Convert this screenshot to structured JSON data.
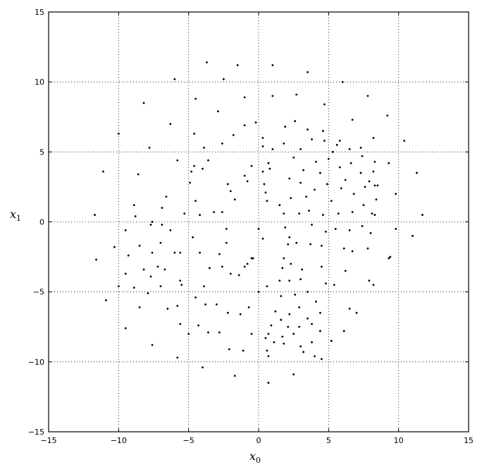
{
  "chart_data": {
    "type": "scatter",
    "title": "",
    "xlabel": "x",
    "xlabel_sub": "0",
    "ylabel": "x",
    "ylabel_sub": "1",
    "xlim": [
      -15,
      15
    ],
    "ylim": [
      -15,
      15
    ],
    "xticks": [
      -15,
      -10,
      -5,
      0,
      5,
      10,
      15
    ],
    "yticks": [
      -15,
      -10,
      -5,
      0,
      5,
      10,
      15
    ],
    "xtick_labels": [
      "−15",
      "−10",
      "−5",
      "0",
      "5",
      "10",
      "15"
    ],
    "ytick_labels": [
      "−15",
      "−10",
      "−5",
      "0",
      "5",
      "10",
      "15"
    ],
    "grid": true,
    "legend": "none",
    "marker_color": "#000000",
    "series": [
      {
        "values": [
          [
            -3.7,
            11.4
          ],
          [
            -6.0,
            10.2
          ],
          [
            -8.2,
            8.5
          ],
          [
            -10.0,
            6.3
          ],
          [
            -11.1,
            3.6
          ],
          [
            -11.7,
            0.5
          ],
          [
            -11.6,
            -2.7
          ],
          [
            -10.9,
            -5.6
          ],
          [
            -9.5,
            -7.6
          ],
          [
            -7.6,
            -8.8
          ],
          [
            -5.8,
            -9.7
          ],
          [
            -4.0,
            -10.4
          ],
          [
            -1.7,
            -11.0
          ],
          [
            0.7,
            -11.5
          ],
          [
            2.5,
            -10.9
          ],
          [
            4.0,
            -9.6
          ],
          [
            5.2,
            -8.5
          ],
          [
            6.5,
            -6.2
          ],
          [
            7.9,
            -4.2
          ],
          [
            9.4,
            -2.5
          ],
          [
            11.0,
            -1.0
          ],
          [
            11.7,
            0.5
          ],
          [
            11.3,
            3.5
          ],
          [
            10.4,
            5.8
          ],
          [
            9.2,
            7.6
          ],
          [
            7.8,
            9.0
          ],
          [
            6.0,
            10.0
          ],
          [
            3.5,
            10.7
          ],
          [
            1.0,
            11.2
          ],
          [
            -1.5,
            11.2
          ],
          [
            -2.5,
            10.2
          ],
          [
            -4.5,
            8.8
          ],
          [
            -6.3,
            7.0
          ],
          [
            -7.8,
            5.3
          ],
          [
            -8.6,
            3.4
          ],
          [
            -8.9,
            1.2
          ]
        ]
      },
      {
        "values": [
          [
            -8.8,
            0.4
          ],
          [
            -7.7,
            -0.2
          ],
          [
            -7.0,
            -1.5
          ],
          [
            -6.7,
            -3.4
          ],
          [
            -7.0,
            -4.6
          ],
          [
            -7.9,
            -5.1
          ],
          [
            -8.9,
            -4.7
          ],
          [
            -9.5,
            -3.7
          ],
          [
            -9.3,
            -2.4
          ],
          [
            -8.5,
            -1.7
          ],
          [
            -7.6,
            -2.2
          ],
          [
            -7.2,
            -3.2
          ],
          [
            -7.7,
            -3.9
          ],
          [
            -8.2,
            -3.4
          ],
          [
            -10.3,
            -1.8
          ],
          [
            -10.0,
            -4.6
          ],
          [
            -8.5,
            -6.1
          ],
          [
            -6.5,
            -6.2
          ],
          [
            -5.5,
            -4.5
          ],
          [
            -5.6,
            -2.2
          ],
          [
            -6.3,
            -0.6
          ],
          [
            -7.6,
            0.0
          ],
          [
            -9.5,
            -0.6
          ]
        ]
      },
      {
        "values": [
          [
            -6.6,
            1.8
          ],
          [
            -5.8,
            4.4
          ],
          [
            -4.6,
            6.3
          ],
          [
            -2.9,
            7.9
          ],
          [
            -1.0,
            8.9
          ],
          [
            1.0,
            9.0
          ],
          [
            2.7,
            9.1
          ],
          [
            4.7,
            8.4
          ],
          [
            6.7,
            7.3
          ],
          [
            8.2,
            6.0
          ],
          [
            9.3,
            4.2
          ],
          [
            9.8,
            2.0
          ],
          [
            9.8,
            -0.5
          ],
          [
            9.3,
            -2.6
          ],
          [
            8.2,
            -4.5
          ],
          [
            7.0,
            -6.5
          ],
          [
            6.1,
            -7.8
          ],
          [
            4.5,
            -9.8
          ],
          [
            3.2,
            -9.3
          ],
          [
            1.8,
            -8.7
          ],
          [
            0.7,
            -8.0
          ],
          [
            -0.5,
            -8.0
          ],
          [
            -1.1,
            -9.2
          ],
          [
            -2.1,
            -9.1
          ],
          [
            -2.8,
            -7.9
          ],
          [
            -3.6,
            -7.9
          ],
          [
            -4.3,
            -7.4
          ],
          [
            -5.0,
            -8.0
          ],
          [
            -5.6,
            -7.3
          ],
          [
            -5.8,
            -6.0
          ],
          [
            -5.6,
            -4.2
          ],
          [
            -6.0,
            -2.2
          ],
          [
            -6.9,
            -0.2
          ],
          [
            -6.9,
            1.0
          ]
        ]
      },
      {
        "values": [
          [
            -5.3,
            0.6
          ],
          [
            -4.8,
            3.6
          ],
          [
            -3.9,
            5.3
          ],
          [
            -2.6,
            5.6
          ],
          [
            -1.8,
            6.2
          ],
          [
            -1.0,
            6.9
          ],
          [
            -0.2,
            7.1
          ],
          [
            0.3,
            6.0
          ],
          [
            0.3,
            5.4
          ],
          [
            1.0,
            5.2
          ],
          [
            1.8,
            5.6
          ],
          [
            1.9,
            6.8
          ],
          [
            2.6,
            7.2
          ],
          [
            3.5,
            6.6
          ],
          [
            4.6,
            6.5
          ],
          [
            5.8,
            5.8
          ],
          [
            7.3,
            5.3
          ],
          [
            8.3,
            4.3
          ],
          [
            8.5,
            2.6
          ],
          [
            8.3,
            0.5
          ],
          [
            8.0,
            -0.8
          ],
          [
            7.8,
            -1.9
          ],
          [
            6.7,
            -2.1
          ],
          [
            6.1,
            -1.9
          ],
          [
            6.2,
            -3.5
          ],
          [
            5.4,
            -4.5
          ],
          [
            4.8,
            -4.4
          ],
          [
            4.5,
            -3.2
          ],
          [
            4.5,
            -1.7
          ],
          [
            3.7,
            -1.6
          ],
          [
            2.7,
            -1.5
          ],
          [
            2.1,
            -1.6
          ],
          [
            1.8,
            -2.6
          ],
          [
            1.7,
            -3.3
          ],
          [
            2.3,
            -3.0
          ],
          [
            3.1,
            -3.4
          ],
          [
            3.0,
            -4.1
          ],
          [
            2.2,
            -4.2
          ],
          [
            1.5,
            -4.2
          ],
          [
            0.6,
            -4.6
          ],
          [
            0.0,
            -5.0
          ],
          [
            -0.7,
            -6.1
          ],
          [
            -1.3,
            -6.6
          ],
          [
            -2.2,
            -6.5
          ],
          [
            -3.0,
            -5.9
          ],
          [
            -3.8,
            -5.9
          ],
          [
            -4.5,
            -5.4
          ],
          [
            -3.9,
            -4.6
          ],
          [
            -3.5,
            -3.3
          ],
          [
            -4.2,
            -2.2
          ],
          [
            -4.7,
            -1.1
          ]
        ]
      },
      {
        "values": [
          [
            -4.9,
            2.8
          ],
          [
            -4.5,
            1.5
          ],
          [
            -4.2,
            0.5
          ],
          [
            -3.2,
            0.7
          ],
          [
            -2.6,
            0.7
          ],
          [
            -2.3,
            -0.5
          ],
          [
            -2.3,
            -1.5
          ],
          [
            -2.8,
            -2.3
          ],
          [
            -2.6,
            -3.2
          ],
          [
            -2.0,
            -3.7
          ],
          [
            -1.4,
            -3.8
          ],
          [
            -0.8,
            -3.0
          ],
          [
            -0.4,
            -2.6
          ],
          [
            0.3,
            -1.2
          ],
          [
            0.0,
            -0.5
          ],
          [
            -0.5,
            -2.6
          ],
          [
            -1.0,
            -3.2
          ],
          [
            -4.0,
            3.8
          ],
          [
            -3.6,
            4.4
          ],
          [
            -4.6,
            4.0
          ],
          [
            -1.7,
            1.6
          ],
          [
            -1.0,
            3.3
          ],
          [
            -0.5,
            4.0
          ],
          [
            -0.8,
            2.9
          ],
          [
            -2.0,
            2.2
          ],
          [
            -2.2,
            2.7
          ],
          [
            0.3,
            3.6
          ],
          [
            0.8,
            3.8
          ],
          [
            0.7,
            4.2
          ],
          [
            0.4,
            2.7
          ],
          [
            0.5,
            2.1
          ],
          [
            0.6,
            1.5
          ],
          [
            1.5,
            1.2
          ],
          [
            1.8,
            0.6
          ],
          [
            1.9,
            -0.4
          ],
          [
            2.2,
            -1.1
          ]
        ]
      },
      {
        "values": [
          [
            2.5,
            4.6
          ],
          [
            3.0,
            5.2
          ],
          [
            3.8,
            5.9
          ],
          [
            4.7,
            5.8
          ],
          [
            5.6,
            5.5
          ],
          [
            6.5,
            5.2
          ],
          [
            7.4,
            4.7
          ],
          [
            8.2,
            3.6
          ],
          [
            8.3,
            2.6
          ],
          [
            8.4,
            1.6
          ],
          [
            8.1,
            0.6
          ],
          [
            7.4,
            -0.3
          ],
          [
            6.5,
            -0.6
          ],
          [
            5.5,
            -0.5
          ],
          [
            4.8,
            -0.7
          ],
          [
            3.8,
            -0.2
          ],
          [
            2.9,
            0.6
          ],
          [
            2.3,
            1.7
          ],
          [
            2.2,
            3.1
          ],
          [
            3.2,
            3.7
          ],
          [
            4.1,
            4.3
          ],
          [
            5.0,
            4.5
          ],
          [
            5.8,
            3.9
          ],
          [
            6.6,
            4.2
          ],
          [
            7.3,
            3.5
          ],
          [
            7.6,
            2.5
          ],
          [
            6.8,
            2.0
          ],
          [
            5.9,
            2.4
          ],
          [
            4.9,
            2.7
          ],
          [
            4.0,
            2.3
          ],
          [
            3.4,
            1.8
          ],
          [
            3.6,
            0.8
          ],
          [
            4.6,
            0.5
          ],
          [
            5.7,
            0.6
          ],
          [
            6.7,
            0.7
          ],
          [
            7.5,
            1.2
          ],
          [
            5.2,
            1.5
          ],
          [
            4.4,
            3.5
          ],
          [
            6.2,
            3.0
          ],
          [
            3.0,
            2.8
          ],
          [
            7.9,
            2.9
          ],
          [
            5.3,
            5.0
          ]
        ]
      },
      {
        "values": [
          [
            1.6,
            -5.3
          ],
          [
            2.6,
            -5.2
          ],
          [
            3.5,
            -5.0
          ],
          [
            4.1,
            -5.7
          ],
          [
            4.4,
            -6.5
          ],
          [
            4.4,
            -7.8
          ],
          [
            3.8,
            -8.6
          ],
          [
            3.0,
            -8.9
          ],
          [
            2.5,
            -8.0
          ],
          [
            1.7,
            -8.2
          ],
          [
            1.1,
            -8.6
          ],
          [
            0.6,
            -9.2
          ],
          [
            0.5,
            -8.3
          ],
          [
            0.9,
            -7.4
          ],
          [
            1.2,
            -6.4
          ],
          [
            2.2,
            -6.6
          ],
          [
            2.9,
            -6.1
          ],
          [
            3.5,
            -6.9
          ],
          [
            2.9,
            -7.5
          ],
          [
            2.1,
            -7.5
          ],
          [
            1.6,
            -7.0
          ],
          [
            3.8,
            -7.3
          ],
          [
            0.7,
            -9.6
          ]
        ]
      }
    ]
  }
}
